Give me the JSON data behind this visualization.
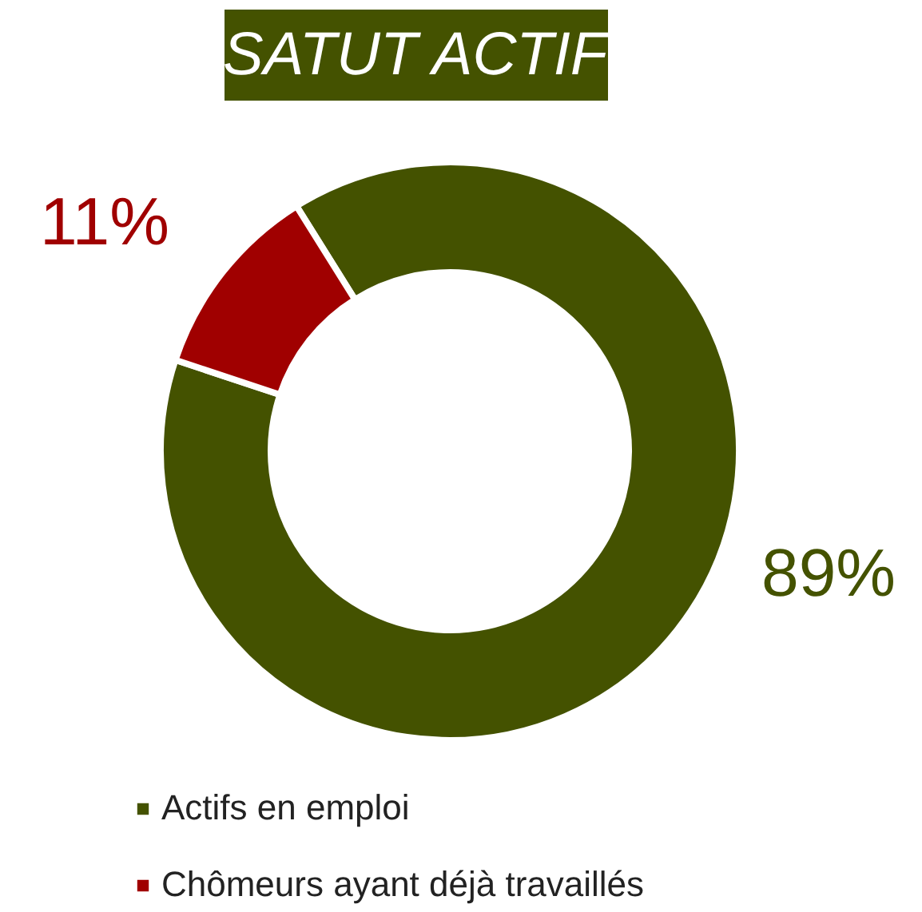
{
  "chart_data": {
    "type": "donut",
    "title": "SATUT ACTIF",
    "categories": [
      "Actifs en emploi",
      "Chômeurs ayant déjà travaillés"
    ],
    "values": [
      89,
      11
    ],
    "colors": [
      "#445200",
      "#a00000"
    ],
    "value_labels": [
      "89%",
      "11%"
    ],
    "legend": "bottom"
  }
}
